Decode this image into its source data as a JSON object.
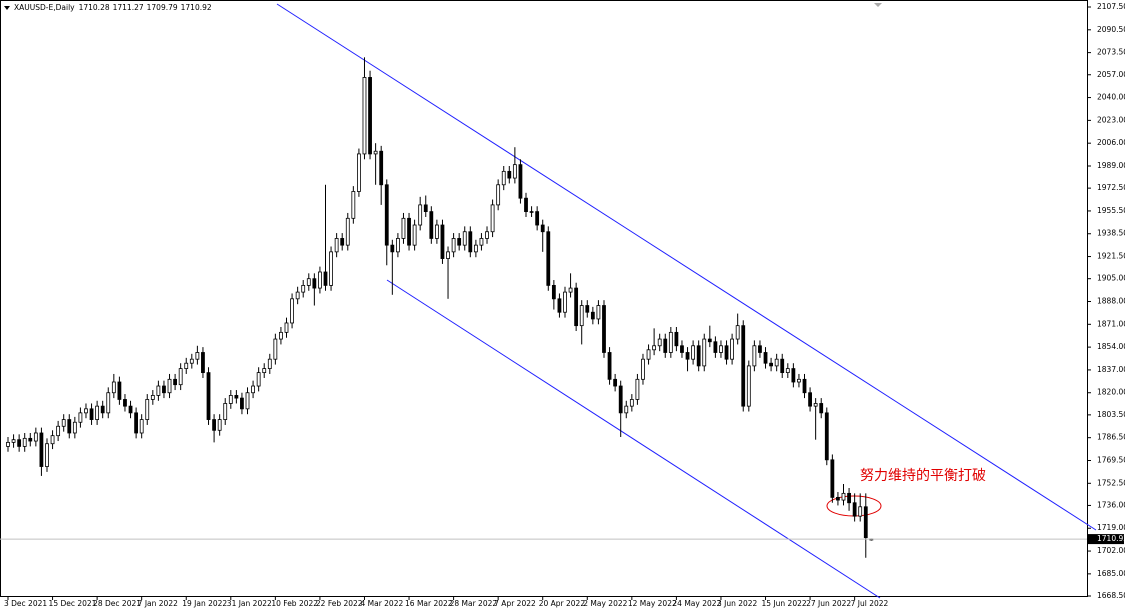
{
  "chart_data": {
    "type": "candlestick",
    "title": "XAUUSD-E,Daily",
    "annotation": "努力维持的平衡打破",
    "categories": [
      "3 Dec 2021",
      null,
      null,
      null,
      null,
      null,
      null,
      null,
      "15 Dec 2021",
      null,
      null,
      null,
      null,
      null,
      null,
      null,
      "28 Dec 2021",
      null,
      null,
      null,
      null,
      null,
      null,
      null,
      "7 Jan 2022",
      null,
      null,
      null,
      null,
      null,
      null,
      null,
      "19 Jan 2022",
      null,
      null,
      null,
      null,
      null,
      null,
      null,
      "31 Jan 2022",
      null,
      null,
      null,
      null,
      null,
      null,
      null,
      "10 Feb 2022",
      null,
      null,
      null,
      null,
      null,
      null,
      null,
      "22 Feb 2022",
      null,
      null,
      null,
      null,
      null,
      null,
      null,
      "4 Mar 2022",
      null,
      null,
      null,
      null,
      null,
      null,
      null,
      "16 Mar 2022",
      null,
      null,
      null,
      null,
      null,
      null,
      null,
      "28 Mar 2022",
      null,
      null,
      null,
      null,
      null,
      null,
      null,
      "7 Apr 2022",
      null,
      null,
      null,
      null,
      null,
      null,
      null,
      "20 Apr 2022",
      null,
      null,
      null,
      null,
      null,
      null,
      null,
      "2 May 2022",
      null,
      null,
      null,
      null,
      null,
      null,
      null,
      "12 May 2022",
      null,
      null,
      null,
      null,
      null,
      null,
      null,
      "24 May 2022",
      null,
      null,
      null,
      null,
      null,
      null,
      null,
      "3 Jun 2022",
      null,
      null,
      null,
      null,
      null,
      null,
      null,
      "15 Jun 2022",
      null,
      null,
      null,
      null,
      null,
      null,
      null,
      "27 Jun 2022",
      null,
      null,
      null,
      null,
      null,
      null,
      null,
      "7 Jul 2022",
      null,
      null,
      null
    ],
    "open": [
      1780,
      1783,
      1785,
      1780,
      1786,
      1784,
      1790,
      1765,
      1782,
      1788,
      1795,
      1800,
      1790,
      1798,
      1805,
      1808,
      1800,
      1810,
      1805,
      1820,
      1828,
      1815,
      1810,
      1805,
      1790,
      1800,
      1815,
      1818,
      1825,
      1820,
      1830,
      1826,
      1838,
      1842,
      1845,
      1850,
      1835,
      1800,
      1792,
      1800,
      1812,
      1818,
      1816,
      1808,
      1820,
      1825,
      1835,
      1838,
      1845,
      1860,
      1865,
      1872,
      1890,
      1895,
      1900,
      1905,
      1898,
      1910,
      1900,
      1925,
      1935,
      1930,
      1950,
      1970,
      1998,
      2055,
      1998,
      2000,
      1975,
      1930,
      1925,
      1935,
      1950,
      1930,
      1945,
      1960,
      1955,
      1935,
      1945,
      1920,
      1925,
      1935,
      1930,
      1940,
      1925,
      1930,
      1935,
      1940,
      1960,
      1975,
      1985,
      1980,
      1990,
      1965,
      1955,
      1955,
      1945,
      1940,
      1900,
      1890,
      1880,
      1895,
      1898,
      1870,
      1885,
      1880,
      1875,
      1885,
      1850,
      1830,
      1825,
      1805,
      1810,
      1815,
      1830,
      1845,
      1852,
      1855,
      1860,
      1850,
      1865,
      1855,
      1850,
      1845,
      1855,
      1840,
      1860,
      1858,
      1850,
      1855,
      1845,
      1860,
      1870,
      1810,
      1840,
      1855,
      1850,
      1842,
      1840,
      1845,
      1835,
      1838,
      1828,
      1830,
      1820,
      1810,
      1812,
      1805,
      1770,
      1742,
      1740,
      1745,
      1738,
      1728,
      1735,
      1710.28
    ],
    "high": [
      1787,
      1789,
      1789,
      1790,
      1790,
      1794,
      1794,
      1786,
      1792,
      1799,
      1804,
      1804,
      1802,
      1809,
      1812,
      1812,
      1814,
      1814,
      1824,
      1834,
      1832,
      1819,
      1814,
      1809,
      1804,
      1819,
      1822,
      1829,
      1829,
      1834,
      1834,
      1842,
      1846,
      1849,
      1855,
      1854,
      1839,
      1804,
      1804,
      1816,
      1822,
      1822,
      1820,
      1824,
      1829,
      1839,
      1842,
      1849,
      1864,
      1869,
      1876,
      1894,
      1899,
      1904,
      1909,
      1909,
      1914,
      1975,
      1929,
      1939,
      1939,
      1954,
      1974,
      2002,
      2070,
      2060,
      2006,
      2004,
      1979,
      1934,
      1939,
      1954,
      1954,
      1949,
      1966,
      1967,
      1959,
      1949,
      1949,
      1929,
      1939,
      1939,
      1944,
      1944,
      1934,
      1939,
      1944,
      1964,
      1979,
      1989,
      1989,
      2003,
      1994,
      1969,
      1959,
      1959,
      1949,
      1944,
      1904,
      1894,
      1899,
      1909,
      1902,
      1889,
      1889,
      1884,
      1889,
      1889,
      1854,
      1834,
      1829,
      1814,
      1819,
      1834,
      1849,
      1856,
      1868,
      1864,
      1864,
      1869,
      1869,
      1859,
      1854,
      1859,
      1859,
      1864,
      1870,
      1862,
      1859,
      1859,
      1864,
      1879,
      1874,
      1844,
      1859,
      1859,
      1854,
      1846,
      1849,
      1849,
      1842,
      1842,
      1834,
      1834,
      1824,
      1816,
      1816,
      1809,
      1774,
      1746,
      1752,
      1749,
      1745,
      1745,
      1745,
      1711.27
    ],
    "low": [
      1776,
      1779,
      1776,
      1776,
      1780,
      1780,
      1758,
      1761,
      1778,
      1784,
      1791,
      1786,
      1786,
      1794,
      1801,
      1796,
      1796,
      1801,
      1801,
      1816,
      1811,
      1806,
      1801,
      1786,
      1786,
      1796,
      1811,
      1814,
      1816,
      1816,
      1822,
      1822,
      1834,
      1838,
      1841,
      1831,
      1796,
      1783,
      1788,
      1796,
      1808,
      1812,
      1804,
      1804,
      1816,
      1821,
      1831,
      1834,
      1841,
      1856,
      1861,
      1868,
      1886,
      1891,
      1896,
      1885,
      1894,
      1896,
      1896,
      1921,
      1926,
      1926,
      1946,
      1966,
      1994,
      1994,
      1975,
      1960,
      1915,
      1893,
      1921,
      1931,
      1926,
      1926,
      1941,
      1951,
      1931,
      1931,
      1916,
      1890,
      1921,
      1926,
      1926,
      1921,
      1921,
      1926,
      1931,
      1936,
      1956,
      1971,
      1976,
      1976,
      1961,
      1951,
      1951,
      1941,
      1925,
      1896,
      1882,
      1876,
      1876,
      1891,
      1866,
      1856,
      1876,
      1871,
      1871,
      1846,
      1826,
      1821,
      1787,
      1801,
      1806,
      1811,
      1826,
      1841,
      1848,
      1851,
      1846,
      1846,
      1851,
      1846,
      1836,
      1841,
      1836,
      1836,
      1854,
      1846,
      1846,
      1841,
      1841,
      1856,
      1806,
      1806,
      1836,
      1846,
      1838,
      1836,
      1836,
      1831,
      1831,
      1824,
      1824,
      1816,
      1806,
      1785,
      1801,
      1766,
      1738,
      1736,
      1736,
      1732,
      1724,
      1724,
      1697,
      1709.79
    ],
    "close": [
      1783,
      1785,
      1780,
      1786,
      1784,
      1790,
      1765,
      1782,
      1788,
      1795,
      1800,
      1790,
      1798,
      1805,
      1808,
      1800,
      1810,
      1805,
      1820,
      1828,
      1815,
      1810,
      1805,
      1790,
      1800,
      1815,
      1818,
      1825,
      1820,
      1830,
      1826,
      1838,
      1842,
      1845,
      1850,
      1835,
      1800,
      1792,
      1800,
      1812,
      1818,
      1816,
      1808,
      1820,
      1825,
      1835,
      1838,
      1845,
      1860,
      1865,
      1872,
      1890,
      1895,
      1900,
      1905,
      1898,
      1910,
      1900,
      1925,
      1935,
      1930,
      1950,
      1970,
      1998,
      2055,
      1998,
      2000,
      1975,
      1930,
      1925,
      1935,
      1950,
      1930,
      1945,
      1960,
      1955,
      1935,
      1945,
      1920,
      1925,
      1935,
      1930,
      1940,
      1925,
      1930,
      1935,
      1940,
      1960,
      1975,
      1985,
      1980,
      1990,
      1965,
      1955,
      1955,
      1945,
      1940,
      1900,
      1890,
      1880,
      1895,
      1898,
      1870,
      1885,
      1880,
      1875,
      1885,
      1850,
      1830,
      1825,
      1805,
      1810,
      1815,
      1830,
      1845,
      1852,
      1855,
      1860,
      1850,
      1865,
      1855,
      1850,
      1845,
      1855,
      1840,
      1860,
      1858,
      1850,
      1855,
      1845,
      1860,
      1870,
      1810,
      1840,
      1855,
      1850,
      1842,
      1840,
      1845,
      1835,
      1838,
      1828,
      1830,
      1820,
      1810,
      1812,
      1805,
      1770,
      1742,
      1740,
      1745,
      1738,
      1728,
      1735,
      1712,
      1710.92
    ],
    "ylim": [
      1668.5,
      2107.5
    ],
    "yticks": [
      {
        "value": 2107.5,
        "label": "2107.50"
      },
      {
        "value": 2090.5,
        "label": "2090.50"
      },
      {
        "value": 2073.5,
        "label": "2073.50"
      },
      {
        "value": 2057,
        "label": "2057.00"
      },
      {
        "value": 2040,
        "label": "2040.00"
      },
      {
        "value": 2023,
        "label": "2023.00"
      },
      {
        "value": 2006,
        "label": "2006.00"
      },
      {
        "value": 1989,
        "label": "1989.00"
      },
      {
        "value": 1972.5,
        "label": "1972.50"
      },
      {
        "value": 1955.5,
        "label": "1955.50"
      },
      {
        "value": 1938.5,
        "label": "1938.50"
      },
      {
        "value": 1921.5,
        "label": "1921.50"
      },
      {
        "value": 1905,
        "label": "1905.00"
      },
      {
        "value": 1888,
        "label": "1888.00"
      },
      {
        "value": 1871,
        "label": "1871.00"
      },
      {
        "value": 1854,
        "label": "1854.00"
      },
      {
        "value": 1837,
        "label": "1837.00"
      },
      {
        "value": 1820,
        "label": "1820.00"
      },
      {
        "value": 1803.5,
        "label": "1803.50"
      },
      {
        "value": 1786.5,
        "label": "1786.50"
      },
      {
        "value": 1769.5,
        "label": "1769.50"
      },
      {
        "value": 1752.5,
        "label": "1752.50"
      },
      {
        "value": 1736,
        "label": "1736.00"
      },
      {
        "value": 1719,
        "label": "1719.00"
      },
      {
        "value": 1702,
        "label": "1702.00"
      },
      {
        "value": 1685,
        "label": "1685.00"
      },
      {
        "value": 1668.5,
        "label": "1668.50"
      }
    ],
    "up_color": "#ffffff",
    "down_color": "#000000",
    "wick_color": "#000000",
    "grid": false
  }
}
